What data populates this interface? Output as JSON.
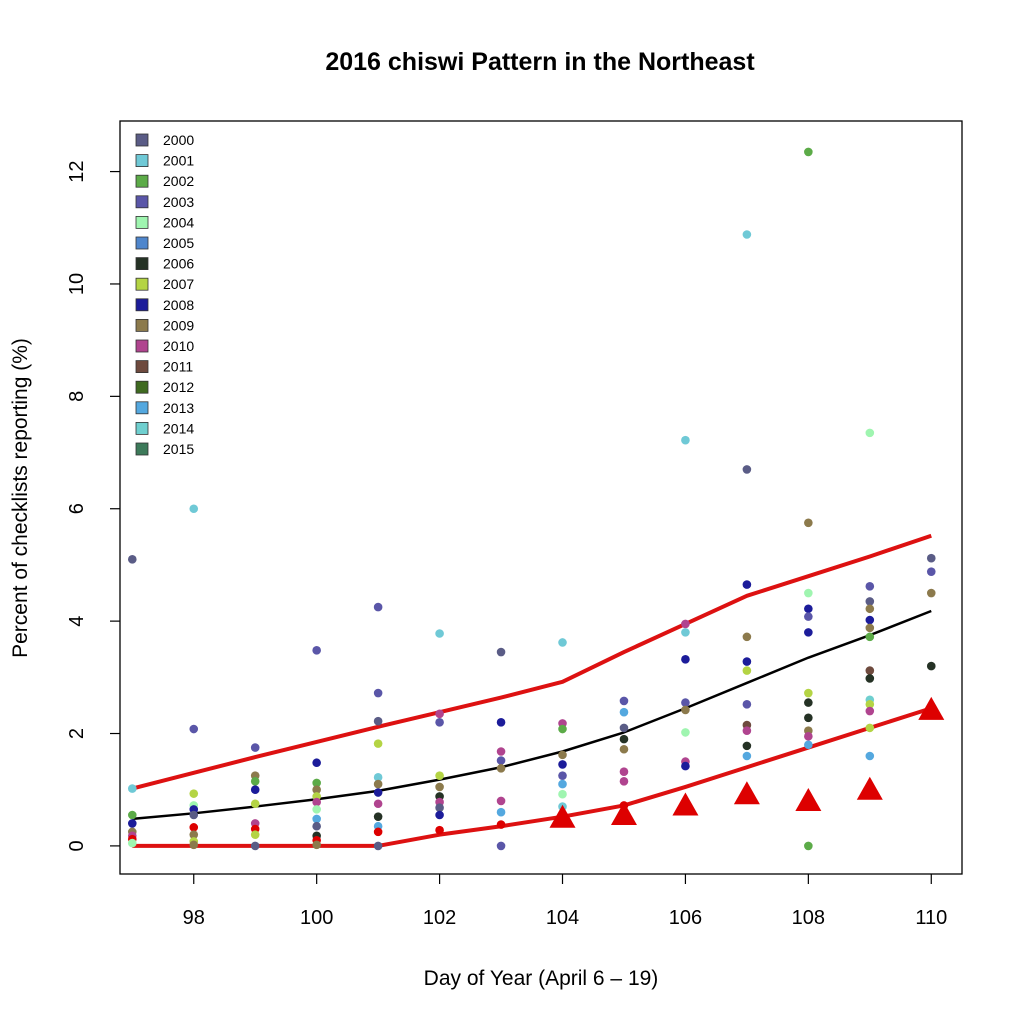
{
  "chart_data": {
    "type": "scatter",
    "title": "2016 chiswi Pattern in the Northeast",
    "xlabel": "Day of Year (April 6 – 19)",
    "ylabel": "Percent of checklists reporting (%)",
    "xlim": [
      96.8,
      110.5
    ],
    "ylim": [
      -0.5,
      12.9
    ],
    "x_ticks": [
      98,
      100,
      102,
      104,
      106,
      108,
      110
    ],
    "y_ticks": [
      0,
      2,
      4,
      6,
      8,
      10,
      12
    ],
    "legend_position": "top-left",
    "legend": [
      {
        "name": "2000",
        "color": "#5a5c86"
      },
      {
        "name": "2001",
        "color": "#6fc9d6"
      },
      {
        "name": "2002",
        "color": "#5cab48"
      },
      {
        "name": "2003",
        "color": "#5a56a8"
      },
      {
        "name": "2004",
        "color": "#9ff5b0"
      },
      {
        "name": "2005",
        "color": "#4f86cc"
      },
      {
        "name": "2006",
        "color": "#253225"
      },
      {
        "name": "2007",
        "color": "#b4d444"
      },
      {
        "name": "2008",
        "color": "#1c1c9a"
      },
      {
        "name": "2009",
        "color": "#8c7a4c"
      },
      {
        "name": "2010",
        "color": "#b0448f"
      },
      {
        "name": "2011",
        "color": "#6e4a3e"
      },
      {
        "name": "2012",
        "color": "#3f6a20"
      },
      {
        "name": "2013",
        "color": "#54a8df"
      },
      {
        "name": "2014",
        "color": "#6fcfcf"
      },
      {
        "name": "2015",
        "color": "#3d7a5a"
      }
    ],
    "scatter_points": [
      {
        "x": 97,
        "y": 5.1,
        "color": "#5a5c86"
      },
      {
        "x": 97,
        "y": 1.02,
        "color": "#6fc9d6"
      },
      {
        "x": 97,
        "y": 0.55,
        "color": "#5cab48"
      },
      {
        "x": 97,
        "y": 0.4,
        "color": "#1c1c9a"
      },
      {
        "x": 97,
        "y": 0.25,
        "color": "#8c7a4c"
      },
      {
        "x": 97,
        "y": 0.18,
        "color": "#b0448f"
      },
      {
        "x": 97,
        "y": 0.12,
        "color": "#dd0000"
      },
      {
        "x": 97,
        "y": 0.05,
        "color": "#9ff5b0"
      },
      {
        "x": 98,
        "y": 6.0,
        "color": "#6fc9d6"
      },
      {
        "x": 98,
        "y": 2.08,
        "color": "#5a56a8"
      },
      {
        "x": 98,
        "y": 0.93,
        "color": "#b4d444"
      },
      {
        "x": 98,
        "y": 0.72,
        "color": "#9ff5b0"
      },
      {
        "x": 98,
        "y": 0.65,
        "color": "#1c1c9a"
      },
      {
        "x": 98,
        "y": 0.55,
        "color": "#5a5c86"
      },
      {
        "x": 98,
        "y": 0.33,
        "color": "#dd0000"
      },
      {
        "x": 98,
        "y": 0.2,
        "color": "#8c7a4c"
      },
      {
        "x": 98,
        "y": 0.08,
        "color": "#b4d444"
      },
      {
        "x": 98,
        "y": 0.02,
        "color": "#8c7a4c"
      },
      {
        "x": 99,
        "y": 1.75,
        "color": "#5a56a8"
      },
      {
        "x": 99,
        "y": 1.25,
        "color": "#8c7a4c"
      },
      {
        "x": 99,
        "y": 1.15,
        "color": "#5cab48"
      },
      {
        "x": 99,
        "y": 1.0,
        "color": "#1c1c9a"
      },
      {
        "x": 99,
        "y": 0.75,
        "color": "#b4d444"
      },
      {
        "x": 99,
        "y": 0.4,
        "color": "#b0448f"
      },
      {
        "x": 99,
        "y": 0.3,
        "color": "#dd0000"
      },
      {
        "x": 99,
        "y": 0.2,
        "color": "#b4d444"
      },
      {
        "x": 99,
        "y": 0.0,
        "color": "#5a5c86"
      },
      {
        "x": 100,
        "y": 3.48,
        "color": "#5a56a8"
      },
      {
        "x": 100,
        "y": 1.48,
        "color": "#1c1c9a"
      },
      {
        "x": 100,
        "y": 1.12,
        "color": "#5cab48"
      },
      {
        "x": 100,
        "y": 1.0,
        "color": "#8c7a4c"
      },
      {
        "x": 100,
        "y": 0.88,
        "color": "#b4d444"
      },
      {
        "x": 100,
        "y": 0.78,
        "color": "#b0448f"
      },
      {
        "x": 100,
        "y": 0.65,
        "color": "#9ff5b0"
      },
      {
        "x": 100,
        "y": 0.48,
        "color": "#54a8df"
      },
      {
        "x": 100,
        "y": 0.35,
        "color": "#5a5c86"
      },
      {
        "x": 100,
        "y": 0.18,
        "color": "#253225"
      },
      {
        "x": 100,
        "y": 0.1,
        "color": "#dd0000"
      },
      {
        "x": 100,
        "y": 0.02,
        "color": "#8c7a4c"
      },
      {
        "x": 101,
        "y": 4.25,
        "color": "#5a56a8"
      },
      {
        "x": 101,
        "y": 2.72,
        "color": "#5a56a8"
      },
      {
        "x": 101,
        "y": 2.22,
        "color": "#5a5c86"
      },
      {
        "x": 101,
        "y": 1.82,
        "color": "#b4d444"
      },
      {
        "x": 101,
        "y": 1.22,
        "color": "#6fc9d6"
      },
      {
        "x": 101,
        "y": 1.1,
        "color": "#8c7a4c"
      },
      {
        "x": 101,
        "y": 0.95,
        "color": "#1c1c9a"
      },
      {
        "x": 101,
        "y": 0.75,
        "color": "#b0448f"
      },
      {
        "x": 101,
        "y": 0.52,
        "color": "#253225"
      },
      {
        "x": 101,
        "y": 0.35,
        "color": "#54a8df"
      },
      {
        "x": 101,
        "y": 0.25,
        "color": "#dd0000"
      },
      {
        "x": 101,
        "y": 0.0,
        "color": "#5a5c86"
      },
      {
        "x": 102,
        "y": 3.78,
        "color": "#6fc9d6"
      },
      {
        "x": 102,
        "y": 2.35,
        "color": "#b0448f"
      },
      {
        "x": 102,
        "y": 2.2,
        "color": "#5a56a8"
      },
      {
        "x": 102,
        "y": 1.25,
        "color": "#b4d444"
      },
      {
        "x": 102,
        "y": 1.05,
        "color": "#8c7a4c"
      },
      {
        "x": 102,
        "y": 0.88,
        "color": "#253225"
      },
      {
        "x": 102,
        "y": 0.78,
        "color": "#b0448f"
      },
      {
        "x": 102,
        "y": 0.68,
        "color": "#5a5c86"
      },
      {
        "x": 102,
        "y": 0.55,
        "color": "#1c1c9a"
      },
      {
        "x": 102,
        "y": 0.28,
        "color": "#dd0000"
      },
      {
        "x": 103,
        "y": 3.45,
        "color": "#5a5c86"
      },
      {
        "x": 103,
        "y": 2.2,
        "color": "#1c1c9a"
      },
      {
        "x": 103,
        "y": 1.68,
        "color": "#b0448f"
      },
      {
        "x": 103,
        "y": 1.52,
        "color": "#5a56a8"
      },
      {
        "x": 103,
        "y": 1.38,
        "color": "#8c7a4c"
      },
      {
        "x": 103,
        "y": 0.8,
        "color": "#b0448f"
      },
      {
        "x": 103,
        "y": 0.6,
        "color": "#54a8df"
      },
      {
        "x": 103,
        "y": 0.38,
        "color": "#dd0000"
      },
      {
        "x": 103,
        "y": 0.0,
        "color": "#5a56a8"
      },
      {
        "x": 104,
        "y": 3.62,
        "color": "#6fc9d6"
      },
      {
        "x": 104,
        "y": 2.18,
        "color": "#b0448f"
      },
      {
        "x": 104,
        "y": 2.08,
        "color": "#5cab48"
      },
      {
        "x": 104,
        "y": 1.62,
        "color": "#8c7a4c"
      },
      {
        "x": 104,
        "y": 1.45,
        "color": "#1c1c9a"
      },
      {
        "x": 104,
        "y": 1.25,
        "color": "#5a56a8"
      },
      {
        "x": 104,
        "y": 1.1,
        "color": "#54a8df"
      },
      {
        "x": 104,
        "y": 0.92,
        "color": "#9ff5b0"
      },
      {
        "x": 104,
        "y": 0.7,
        "color": "#6fc9d6"
      },
      {
        "x": 105,
        "y": 2.58,
        "color": "#5a56a8"
      },
      {
        "x": 105,
        "y": 2.38,
        "color": "#54a8df"
      },
      {
        "x": 105,
        "y": 2.1,
        "color": "#5a5c86"
      },
      {
        "x": 105,
        "y": 1.9,
        "color": "#253225"
      },
      {
        "x": 105,
        "y": 1.72,
        "color": "#8c7a4c"
      },
      {
        "x": 105,
        "y": 1.32,
        "color": "#b0448f"
      },
      {
        "x": 105,
        "y": 1.15,
        "color": "#b0448f"
      },
      {
        "x": 105,
        "y": 0.72,
        "color": "#dd0000"
      },
      {
        "x": 106,
        "y": 7.22,
        "color": "#6fc9d6"
      },
      {
        "x": 106,
        "y": 3.95,
        "color": "#b0448f"
      },
      {
        "x": 106,
        "y": 3.8,
        "color": "#6fc9d6"
      },
      {
        "x": 106,
        "y": 3.32,
        "color": "#1c1c9a"
      },
      {
        "x": 106,
        "y": 2.55,
        "color": "#5a56a8"
      },
      {
        "x": 106,
        "y": 2.42,
        "color": "#8c7a4c"
      },
      {
        "x": 106,
        "y": 2.02,
        "color": "#9ff5b0"
      },
      {
        "x": 106,
        "y": 1.5,
        "color": "#b0448f"
      },
      {
        "x": 106,
        "y": 1.42,
        "color": "#1c1c9a"
      },
      {
        "x": 106,
        "y": 0.62,
        "color": "#253225"
      },
      {
        "x": 107,
        "y": 10.88,
        "color": "#6fc9d6"
      },
      {
        "x": 107,
        "y": 6.7,
        "color": "#5a5c86"
      },
      {
        "x": 107,
        "y": 4.65,
        "color": "#1c1c9a"
      },
      {
        "x": 107,
        "y": 3.72,
        "color": "#8c7a4c"
      },
      {
        "x": 107,
        "y": 3.28,
        "color": "#1c1c9a"
      },
      {
        "x": 107,
        "y": 3.12,
        "color": "#b4d444"
      },
      {
        "x": 107,
        "y": 2.52,
        "color": "#5a56a8"
      },
      {
        "x": 107,
        "y": 2.15,
        "color": "#6e4a3e"
      },
      {
        "x": 107,
        "y": 2.05,
        "color": "#b0448f"
      },
      {
        "x": 107,
        "y": 1.78,
        "color": "#253225"
      },
      {
        "x": 107,
        "y": 1.6,
        "color": "#54a8df"
      },
      {
        "x": 108,
        "y": 12.35,
        "color": "#5cab48"
      },
      {
        "x": 108,
        "y": 5.75,
        "color": "#8c7a4c"
      },
      {
        "x": 108,
        "y": 4.5,
        "color": "#9ff5b0"
      },
      {
        "x": 108,
        "y": 4.22,
        "color": "#1c1c9a"
      },
      {
        "x": 108,
        "y": 4.08,
        "color": "#5a56a8"
      },
      {
        "x": 108,
        "y": 3.8,
        "color": "#1c1c9a"
      },
      {
        "x": 108,
        "y": 2.72,
        "color": "#b4d444"
      },
      {
        "x": 108,
        "y": 2.55,
        "color": "#253225"
      },
      {
        "x": 108,
        "y": 2.28,
        "color": "#253225"
      },
      {
        "x": 108,
        "y": 2.05,
        "color": "#8c7a4c"
      },
      {
        "x": 108,
        "y": 1.95,
        "color": "#b0448f"
      },
      {
        "x": 108,
        "y": 1.8,
        "color": "#54a8df"
      },
      {
        "x": 108,
        "y": 0.0,
        "color": "#5cab48"
      },
      {
        "x": 109,
        "y": 7.35,
        "color": "#9ff5b0"
      },
      {
        "x": 109,
        "y": 4.62,
        "color": "#5a56a8"
      },
      {
        "x": 109,
        "y": 4.35,
        "color": "#5a5c86"
      },
      {
        "x": 109,
        "y": 4.22,
        "color": "#8c7a4c"
      },
      {
        "x": 109,
        "y": 4.02,
        "color": "#1c1c9a"
      },
      {
        "x": 109,
        "y": 3.88,
        "color": "#8c7a4c"
      },
      {
        "x": 109,
        "y": 3.72,
        "color": "#5cab48"
      },
      {
        "x": 109,
        "y": 3.12,
        "color": "#6e4a3e"
      },
      {
        "x": 109,
        "y": 2.98,
        "color": "#253225"
      },
      {
        "x": 109,
        "y": 2.6,
        "color": "#6fcfcf"
      },
      {
        "x": 109,
        "y": 2.52,
        "color": "#b4d444"
      },
      {
        "x": 109,
        "y": 2.4,
        "color": "#b0448f"
      },
      {
        "x": 109,
        "y": 2.1,
        "color": "#b4d444"
      },
      {
        "x": 109,
        "y": 1.6,
        "color": "#54a8df"
      },
      {
        "x": 110,
        "y": 5.12,
        "color": "#5a5c86"
      },
      {
        "x": 110,
        "y": 4.88,
        "color": "#5a56a8"
      },
      {
        "x": 110,
        "y": 4.5,
        "color": "#8c7a4c"
      },
      {
        "x": 110,
        "y": 3.2,
        "color": "#253225"
      }
    ],
    "series": [
      {
        "color": "#000000",
        "x": [
          97,
          98,
          99,
          100,
          101,
          102,
          103,
          104,
          105,
          106,
          107,
          108,
          109,
          110
        ],
        "values": [
          0.48,
          0.58,
          0.7,
          0.83,
          0.98,
          1.18,
          1.4,
          1.68,
          2.02,
          2.45,
          2.9,
          3.35,
          3.75,
          4.18
        ]
      },
      {
        "color": "#dd1111",
        "x": [
          97,
          98,
          99,
          100,
          101,
          102,
          103,
          104,
          105,
          106,
          107,
          108,
          109,
          110
        ],
        "values": [
          1.02,
          1.3,
          1.58,
          1.85,
          2.12,
          2.38,
          2.64,
          2.92,
          3.45,
          3.95,
          4.45,
          4.8,
          5.15,
          5.52
        ]
      },
      {
        "color": "#dd1111",
        "x": [
          97,
          98,
          99,
          100,
          101,
          102,
          103,
          104,
          105,
          106,
          107,
          108,
          109,
          110
        ],
        "values": [
          0.0,
          0.0,
          0.0,
          0.0,
          0.0,
          0.2,
          0.35,
          0.52,
          0.72,
          1.05,
          1.4,
          1.75,
          2.1,
          2.45
        ]
      },
      {
        "type": "triangle",
        "color": "#dd0000",
        "x": [
          104,
          105,
          106,
          107,
          108,
          109,
          110
        ],
        "values": [
          0.5,
          0.55,
          0.72,
          0.92,
          0.8,
          1.0,
          2.42
        ]
      }
    ]
  }
}
